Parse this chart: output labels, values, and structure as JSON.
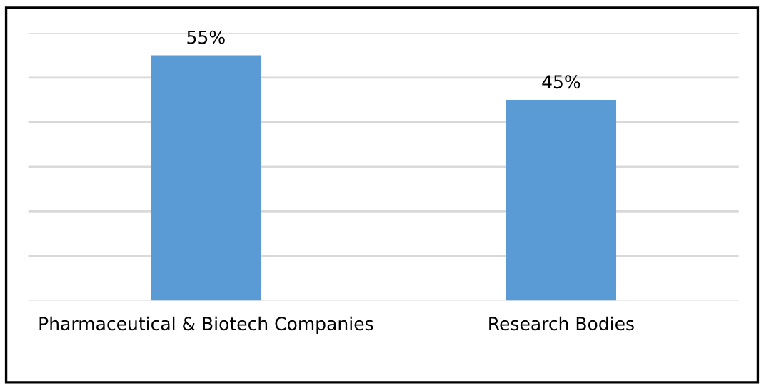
{
  "chart_data": {
    "type": "bar",
    "categories": [
      "Pharmaceutical & Biotech Companies",
      "Research Bodies"
    ],
    "values": [
      55,
      45
    ],
    "value_labels": [
      "55%",
      "45%"
    ],
    "color": "#5b9bd5",
    "ylim": [
      0,
      60
    ],
    "yticks": [
      {
        "value": 0,
        "label": null
      },
      {
        "value": 10,
        "label": null
      },
      {
        "value": 20,
        "label": null
      },
      {
        "value": 30,
        "label": null
      },
      {
        "value": 40,
        "label": null
      },
      {
        "value": 50,
        "label": null
      },
      {
        "value": 60,
        "label": null
      }
    ],
    "grid": "y",
    "tick_labels": "x"
  }
}
